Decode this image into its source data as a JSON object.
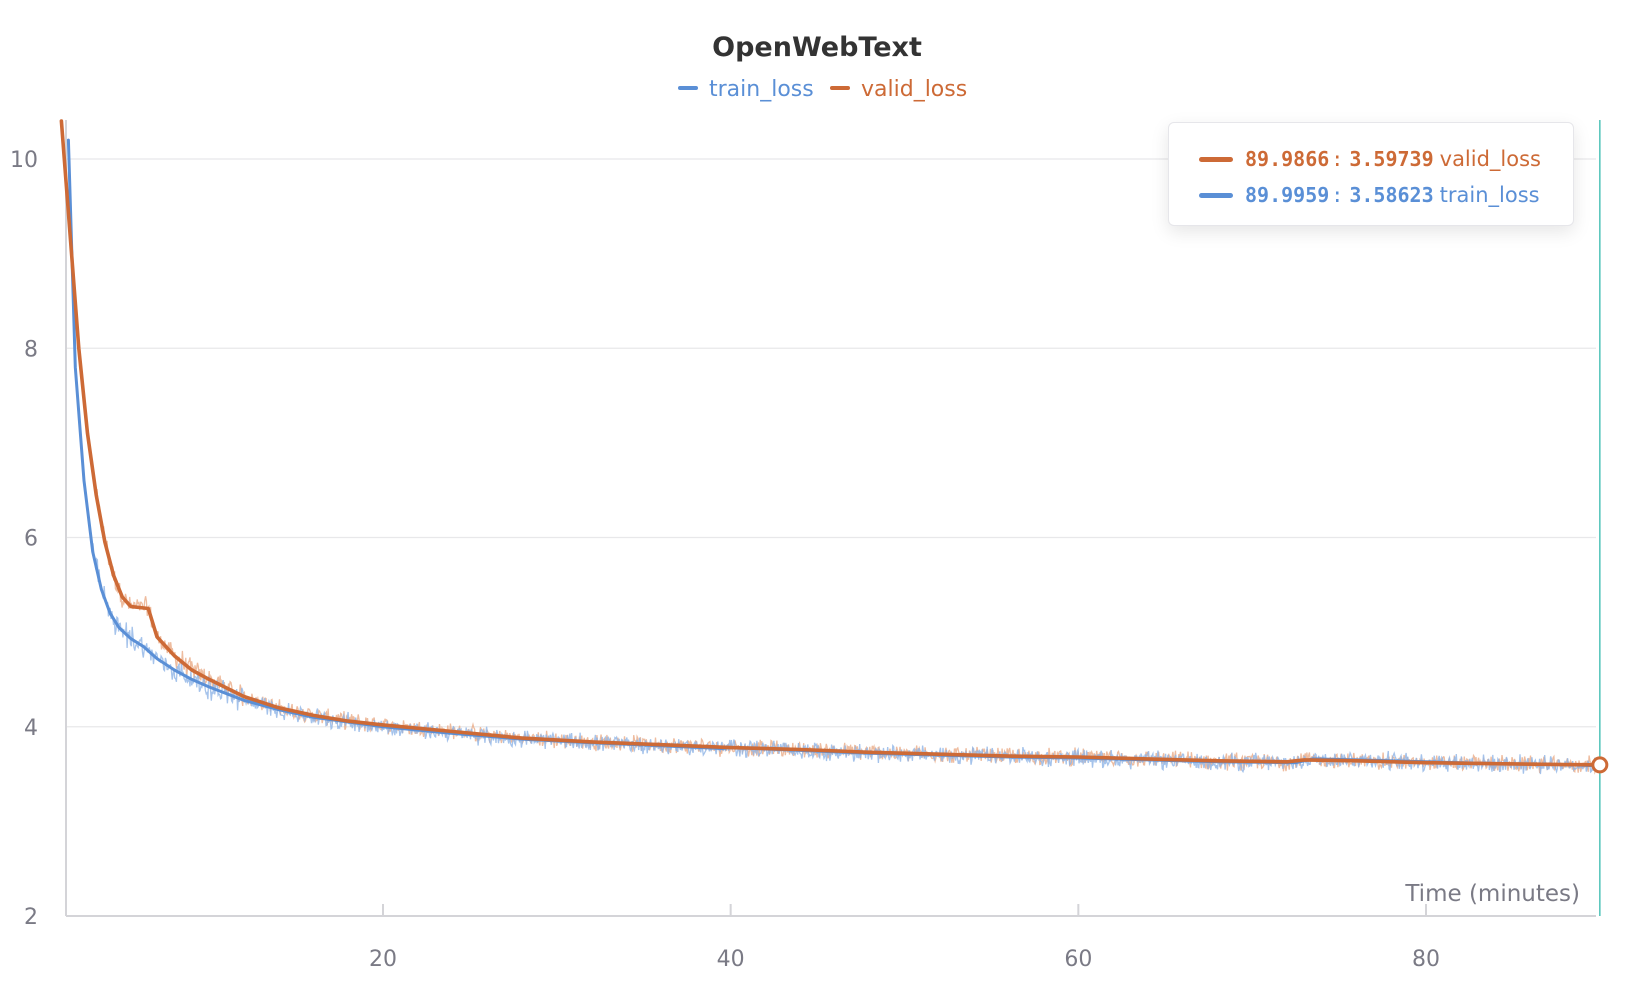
{
  "chart_data": {
    "type": "line",
    "title": "OpenWebText",
    "xlabel": "Time (minutes)",
    "ylabel": "",
    "xlim": [
      1.5,
      91.5
    ],
    "ylim": [
      2,
      10.4
    ],
    "xticks": [
      20,
      40,
      60,
      80
    ],
    "yticks": [
      2,
      4,
      6,
      8,
      10
    ],
    "grid": true,
    "legend_position": "top-center",
    "colors": {
      "train_loss": "#5a8fd6",
      "valid_loss": "#cd6a36",
      "cursor": "#4fc3b8"
    },
    "series": [
      {
        "name": "train_loss",
        "color": "#5a8fd6",
        "x": [
          1.9,
          2.3,
          2.8,
          3.3,
          3.8,
          4.3,
          4.8,
          5.5,
          6.2,
          7,
          8,
          9,
          10,
          12,
          14,
          16,
          18,
          20,
          24,
          28,
          32,
          36,
          39.5,
          40,
          44,
          48,
          52,
          56,
          60,
          64,
          68,
          72.5,
          73.5,
          76,
          80,
          84,
          88,
          90
        ],
        "values": [
          10.2,
          7.8,
          6.6,
          5.85,
          5.45,
          5.2,
          5.05,
          4.93,
          4.85,
          4.72,
          4.6,
          4.5,
          4.42,
          4.28,
          4.18,
          4.1,
          4.05,
          4.0,
          3.93,
          3.87,
          3.83,
          3.8,
          3.77,
          3.78,
          3.75,
          3.72,
          3.7,
          3.68,
          3.67,
          3.65,
          3.63,
          3.62,
          3.66,
          3.65,
          3.63,
          3.61,
          3.6,
          3.58623
        ]
      },
      {
        "name": "valid_loss",
        "color": "#cd6a36",
        "x": [
          1.5,
          2,
          2.5,
          3,
          3.5,
          4,
          4.5,
          5,
          5.5,
          6,
          6.5,
          7,
          8,
          9,
          10,
          12,
          14,
          16,
          18,
          20,
          24,
          28,
          32,
          36,
          40,
          44,
          48,
          52,
          56,
          60,
          64,
          68,
          72,
          73,
          76,
          80,
          84,
          88,
          90
        ],
        "values": [
          10.4,
          9.2,
          8.0,
          7.1,
          6.45,
          5.95,
          5.6,
          5.37,
          5.27,
          5.26,
          5.25,
          4.95,
          4.75,
          4.6,
          4.5,
          4.32,
          4.2,
          4.12,
          4.06,
          4.02,
          3.95,
          3.88,
          3.84,
          3.81,
          3.78,
          3.76,
          3.73,
          3.71,
          3.69,
          3.68,
          3.66,
          3.64,
          3.63,
          3.65,
          3.64,
          3.62,
          3.61,
          3.6,
          3.59739
        ]
      }
    ],
    "cursor": {
      "x": 90
    },
    "tooltip": [
      {
        "series": "valid_loss",
        "x": "89.9866",
        "y": "3.59739",
        "color": "#cd6a36"
      },
      {
        "series": "train_loss",
        "x": "89.9959",
        "y": "3.58623",
        "color": "#5a8fd6"
      }
    ]
  }
}
